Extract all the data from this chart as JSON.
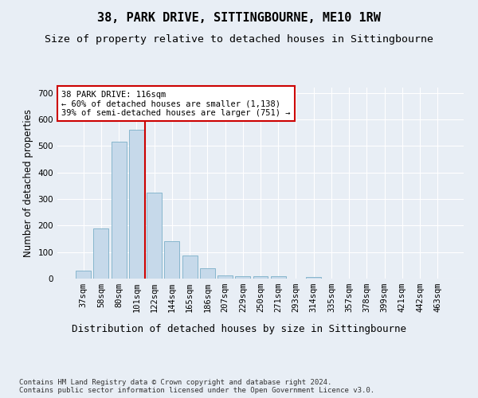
{
  "title": "38, PARK DRIVE, SITTINGBOURNE, ME10 1RW",
  "subtitle": "Size of property relative to detached houses in Sittingbourne",
  "xlabel": "Distribution of detached houses by size in Sittingbourne",
  "ylabel": "Number of detached properties",
  "categories": [
    "37sqm",
    "58sqm",
    "80sqm",
    "101sqm",
    "122sqm",
    "144sqm",
    "165sqm",
    "186sqm",
    "207sqm",
    "229sqm",
    "250sqm",
    "271sqm",
    "293sqm",
    "314sqm",
    "335sqm",
    "357sqm",
    "378sqm",
    "399sqm",
    "421sqm",
    "442sqm",
    "463sqm"
  ],
  "values": [
    30,
    190,
    515,
    560,
    325,
    142,
    86,
    38,
    12,
    8,
    8,
    8,
    0,
    6,
    0,
    0,
    0,
    0,
    0,
    0,
    0
  ],
  "bar_color": "#c6d9ea",
  "bar_edge_color": "#7aafc8",
  "vline_x_index": 3.5,
  "vline_color": "#cc0000",
  "annotation_text": "38 PARK DRIVE: 116sqm\n← 60% of detached houses are smaller (1,138)\n39% of semi-detached houses are larger (751) →",
  "annotation_box_color": "#ffffff",
  "annotation_box_edge": "#cc0000",
  "ylim": [
    0,
    720
  ],
  "yticks": [
    0,
    100,
    200,
    300,
    400,
    500,
    600,
    700
  ],
  "bg_color": "#e8eef5",
  "plot_bg_color": "#e8eef5",
  "footer": "Contains HM Land Registry data © Crown copyright and database right 2024.\nContains public sector information licensed under the Open Government Licence v3.0.",
  "title_fontsize": 11,
  "subtitle_fontsize": 9.5,
  "xlabel_fontsize": 9,
  "ylabel_fontsize": 8.5,
  "tick_fontsize": 7.5,
  "annotation_fontsize": 7.5,
  "footer_fontsize": 6.5
}
